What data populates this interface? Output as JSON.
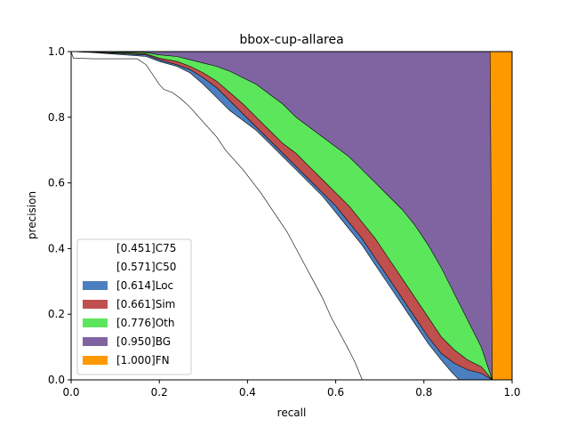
{
  "chart_data": {
    "type": "area",
    "title": "bbox-cup-allarea",
    "xlabel": "recall",
    "ylabel": "precision",
    "xlim": [
      0,
      1
    ],
    "ylim": [
      0,
      1
    ],
    "xticks": [
      "0.0",
      "0.2",
      "0.4",
      "0.6",
      "0.8",
      "1.0"
    ],
    "yticks": [
      "0.0",
      "0.2",
      "0.4",
      "0.6",
      "0.8",
      "1.0"
    ],
    "grid": false,
    "legend_placement": "lower-left",
    "series": [
      {
        "name": "[0.451]C75",
        "color": "#ffffff",
        "points": [
          [
            0,
            1.0
          ],
          [
            0.005,
            0.98
          ],
          [
            0.05,
            0.978
          ],
          [
            0.15,
            0.978
          ],
          [
            0.17,
            0.96
          ],
          [
            0.19,
            0.92
          ],
          [
            0.2,
            0.9
          ],
          [
            0.21,
            0.885
          ],
          [
            0.23,
            0.875
          ],
          [
            0.25,
            0.855
          ],
          [
            0.27,
            0.83
          ],
          [
            0.29,
            0.8
          ],
          [
            0.31,
            0.77
          ],
          [
            0.33,
            0.74
          ],
          [
            0.35,
            0.7
          ],
          [
            0.37,
            0.67
          ],
          [
            0.39,
            0.64
          ],
          [
            0.41,
            0.605
          ],
          [
            0.43,
            0.57
          ],
          [
            0.45,
            0.53
          ],
          [
            0.47,
            0.49
          ],
          [
            0.49,
            0.45
          ],
          [
            0.51,
            0.4
          ],
          [
            0.53,
            0.35
          ],
          [
            0.55,
            0.3
          ],
          [
            0.57,
            0.25
          ],
          [
            0.59,
            0.19
          ],
          [
            0.61,
            0.14
          ],
          [
            0.63,
            0.09
          ],
          [
            0.645,
            0.05
          ],
          [
            0.66,
            0.0
          ]
        ]
      },
      {
        "name": "[0.571]C50",
        "color": "#ffffff",
        "points": [
          [
            0,
            1.0
          ],
          [
            0.05,
            0.997
          ],
          [
            0.17,
            0.985
          ],
          [
            0.2,
            0.97
          ],
          [
            0.24,
            0.955
          ],
          [
            0.27,
            0.935
          ],
          [
            0.3,
            0.9
          ],
          [
            0.33,
            0.86
          ],
          [
            0.36,
            0.82
          ],
          [
            0.39,
            0.79
          ],
          [
            0.42,
            0.76
          ],
          [
            0.45,
            0.72
          ],
          [
            0.48,
            0.68
          ],
          [
            0.51,
            0.64
          ],
          [
            0.54,
            0.6
          ],
          [
            0.57,
            0.56
          ],
          [
            0.6,
            0.51
          ],
          [
            0.63,
            0.46
          ],
          [
            0.66,
            0.41
          ],
          [
            0.69,
            0.35
          ],
          [
            0.72,
            0.29
          ],
          [
            0.75,
            0.23
          ],
          [
            0.78,
            0.17
          ],
          [
            0.81,
            0.11
          ],
          [
            0.84,
            0.06
          ],
          [
            0.865,
            0.02
          ],
          [
            0.88,
            0.0
          ]
        ]
      },
      {
        "name": "[0.614]Loc",
        "color": "#4c7fbf",
        "points": [
          [
            0,
            1.0
          ],
          [
            0.05,
            0.998
          ],
          [
            0.17,
            0.99
          ],
          [
            0.2,
            0.975
          ],
          [
            0.24,
            0.96
          ],
          [
            0.27,
            0.945
          ],
          [
            0.3,
            0.92
          ],
          [
            0.33,
            0.89
          ],
          [
            0.36,
            0.85
          ],
          [
            0.39,
            0.81
          ],
          [
            0.42,
            0.77
          ],
          [
            0.45,
            0.73
          ],
          [
            0.48,
            0.69
          ],
          [
            0.51,
            0.65
          ],
          [
            0.54,
            0.61
          ],
          [
            0.57,
            0.57
          ],
          [
            0.6,
            0.53
          ],
          [
            0.63,
            0.48
          ],
          [
            0.66,
            0.43
          ],
          [
            0.69,
            0.37
          ],
          [
            0.72,
            0.31
          ],
          [
            0.75,
            0.25
          ],
          [
            0.78,
            0.19
          ],
          [
            0.81,
            0.13
          ],
          [
            0.84,
            0.08
          ],
          [
            0.87,
            0.05
          ],
          [
            0.9,
            0.03
          ],
          [
            0.93,
            0.02
          ],
          [
            0.955,
            0.0
          ]
        ]
      },
      {
        "name": "[0.661]Sim",
        "color": "#c0504d",
        "points": [
          [
            0,
            1.0
          ],
          [
            0.05,
            0.999
          ],
          [
            0.17,
            0.993
          ],
          [
            0.2,
            0.98
          ],
          [
            0.24,
            0.97
          ],
          [
            0.27,
            0.955
          ],
          [
            0.3,
            0.935
          ],
          [
            0.33,
            0.91
          ],
          [
            0.36,
            0.875
          ],
          [
            0.39,
            0.84
          ],
          [
            0.42,
            0.8
          ],
          [
            0.45,
            0.76
          ],
          [
            0.48,
            0.72
          ],
          [
            0.51,
            0.69
          ],
          [
            0.54,
            0.65
          ],
          [
            0.57,
            0.61
          ],
          [
            0.6,
            0.57
          ],
          [
            0.63,
            0.53
          ],
          [
            0.66,
            0.48
          ],
          [
            0.69,
            0.43
          ],
          [
            0.72,
            0.37
          ],
          [
            0.75,
            0.31
          ],
          [
            0.78,
            0.25
          ],
          [
            0.81,
            0.19
          ],
          [
            0.84,
            0.13
          ],
          [
            0.87,
            0.09
          ],
          [
            0.9,
            0.06
          ],
          [
            0.93,
            0.04
          ],
          [
            0.955,
            0.0
          ]
        ]
      },
      {
        "name": "[0.776]Oth",
        "color": "#5ce65c",
        "points": [
          [
            0,
            1.0
          ],
          [
            0.05,
            1.0
          ],
          [
            0.17,
            0.997
          ],
          [
            0.2,
            0.99
          ],
          [
            0.24,
            0.985
          ],
          [
            0.27,
            0.975
          ],
          [
            0.3,
            0.965
          ],
          [
            0.33,
            0.955
          ],
          [
            0.36,
            0.94
          ],
          [
            0.39,
            0.92
          ],
          [
            0.42,
            0.9
          ],
          [
            0.45,
            0.87
          ],
          [
            0.48,
            0.84
          ],
          [
            0.51,
            0.8
          ],
          [
            0.54,
            0.77
          ],
          [
            0.57,
            0.74
          ],
          [
            0.6,
            0.71
          ],
          [
            0.63,
            0.68
          ],
          [
            0.66,
            0.64
          ],
          [
            0.69,
            0.6
          ],
          [
            0.72,
            0.56
          ],
          [
            0.75,
            0.52
          ],
          [
            0.78,
            0.47
          ],
          [
            0.81,
            0.41
          ],
          [
            0.84,
            0.34
          ],
          [
            0.87,
            0.26
          ],
          [
            0.9,
            0.18
          ],
          [
            0.93,
            0.1
          ],
          [
            0.955,
            0.0
          ]
        ]
      },
      {
        "name": "[0.950]BG",
        "color": "#8064a2",
        "points": [
          [
            0,
            1.0
          ],
          [
            0.95,
            1.0
          ],
          [
            0.955,
            0.0
          ]
        ]
      },
      {
        "name": "[1.000]FN",
        "color": "#ff9900",
        "points": [
          [
            0,
            1.0
          ],
          [
            1.0,
            1.0
          ],
          [
            1.0,
            0.0
          ]
        ]
      }
    ]
  }
}
